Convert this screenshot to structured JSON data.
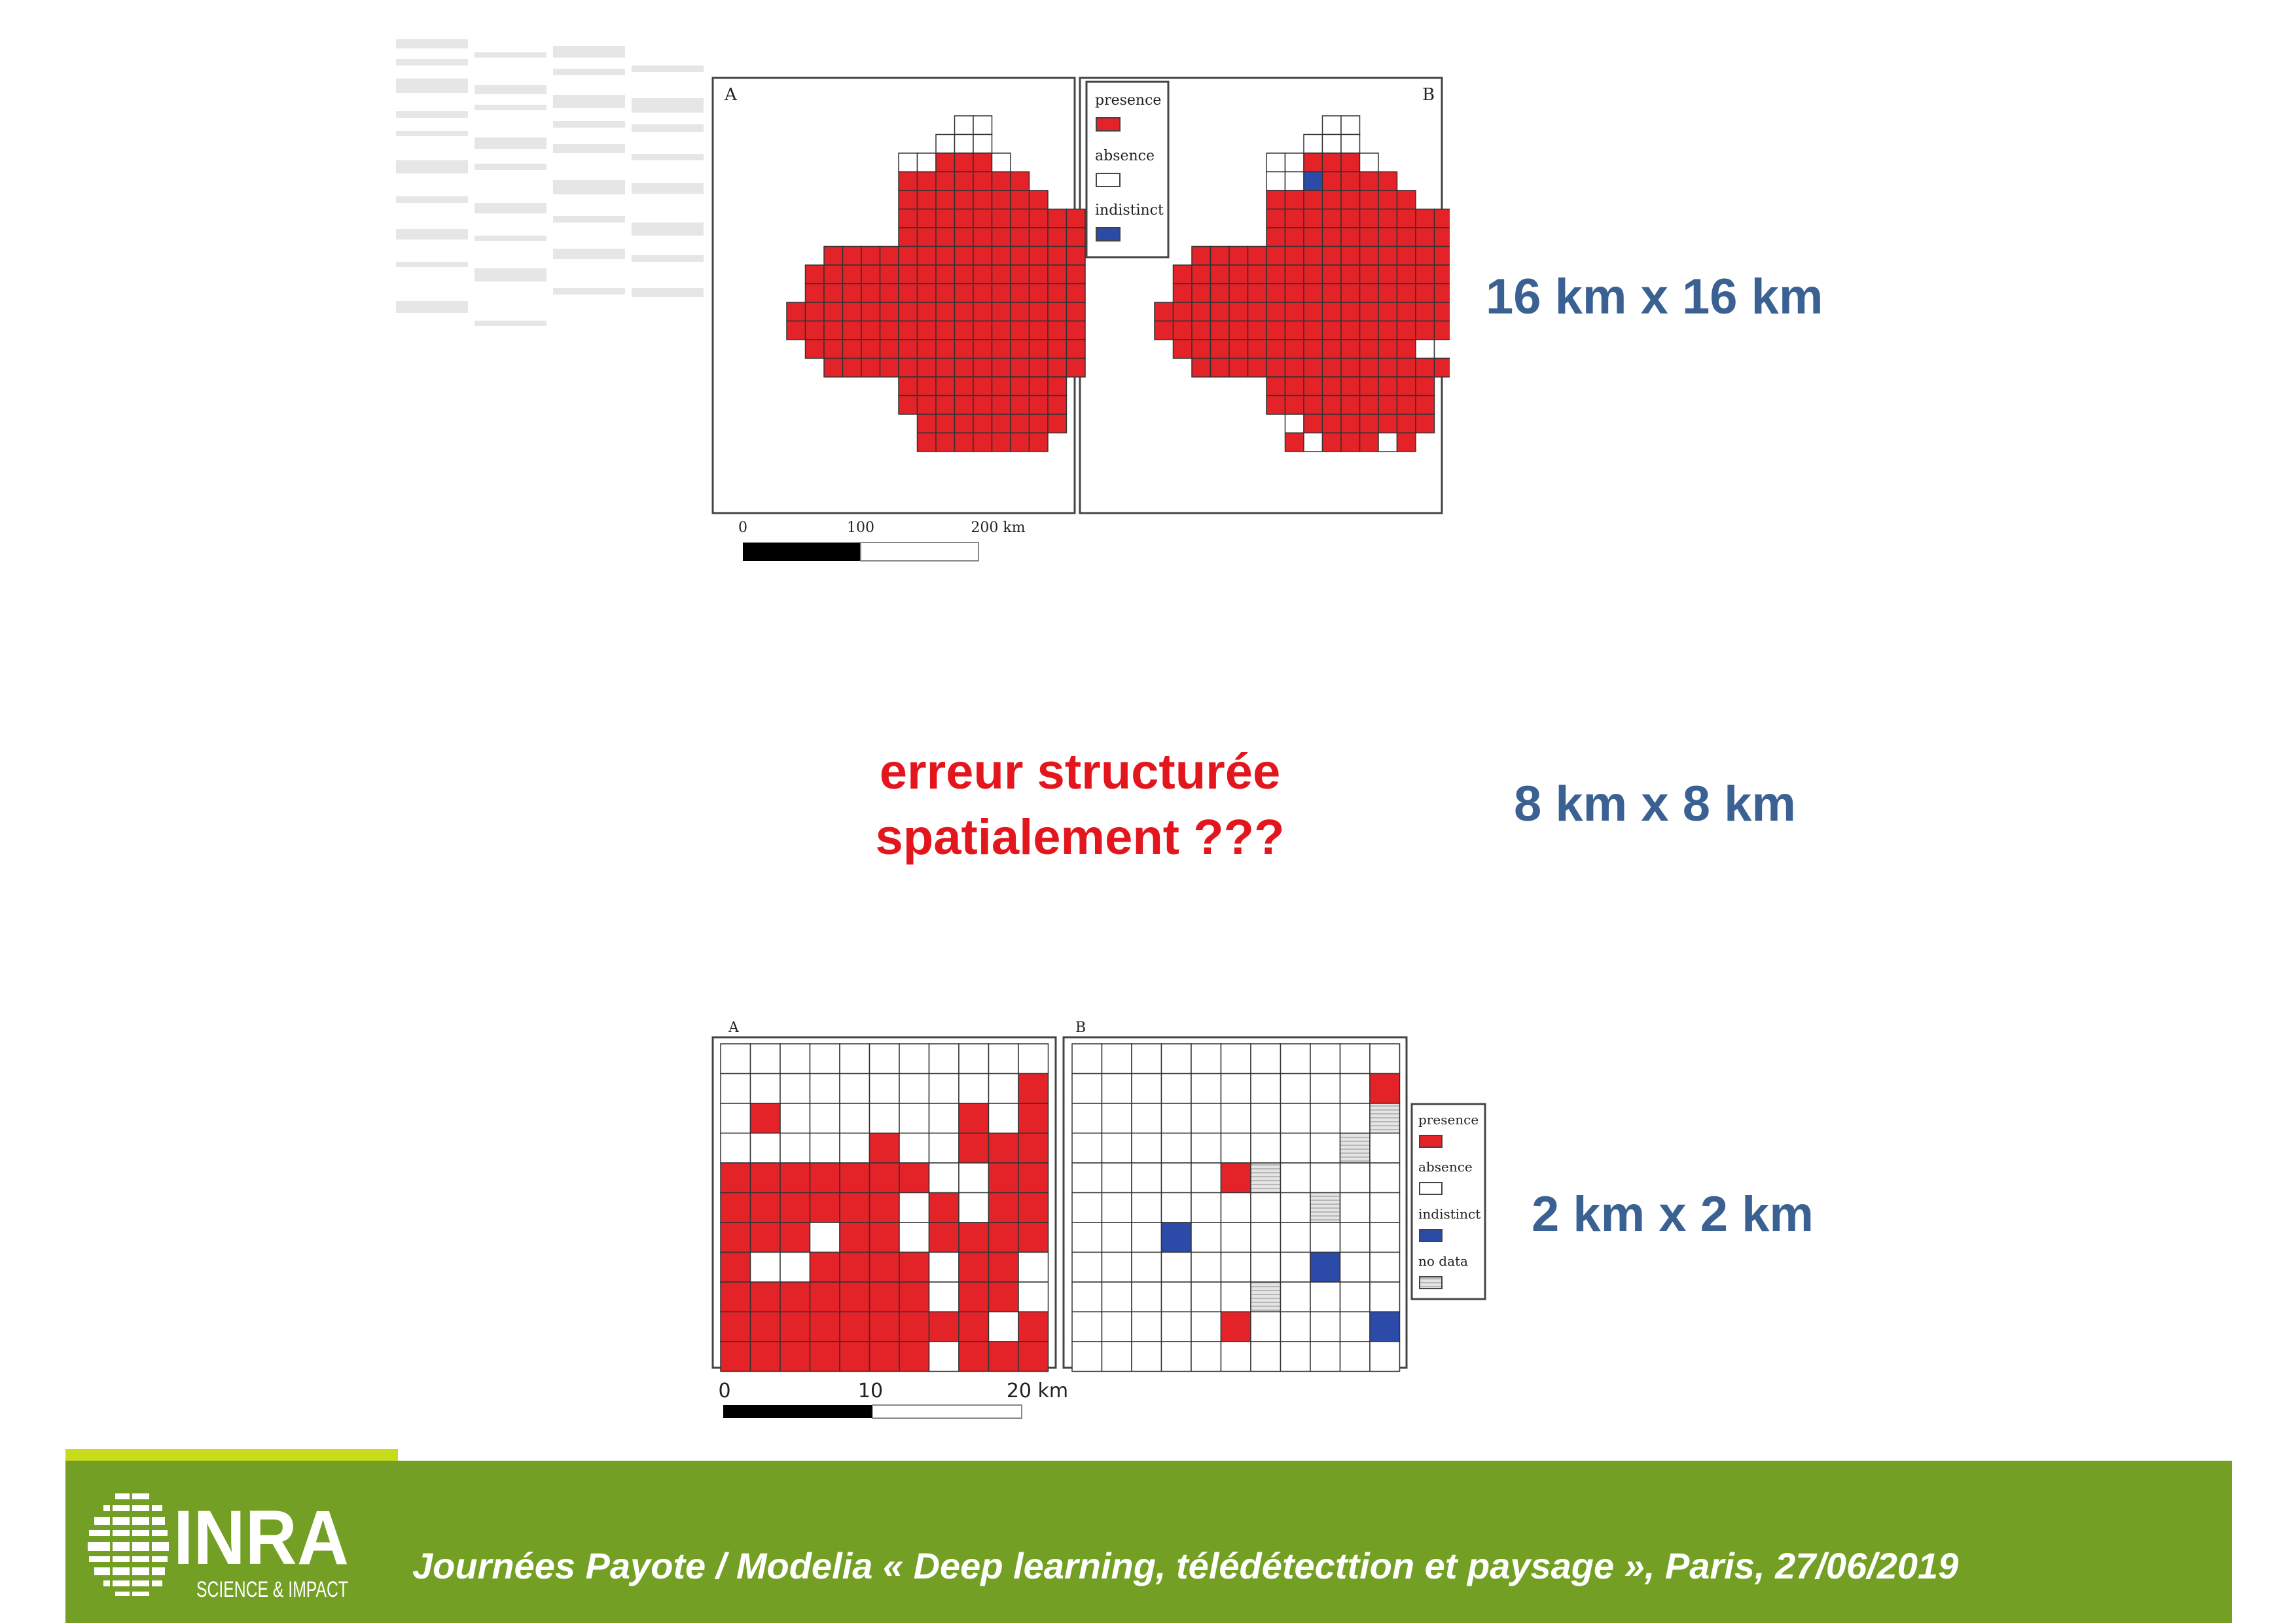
{
  "colors": {
    "presence": "#e32328",
    "absence": "#ffffff",
    "indistinct": "#2c4ba8",
    "no_data": "#d8d8d8",
    "resolution_label": "#3a6191",
    "question": "#e3161d",
    "footer_bg": "#73a024",
    "footer_accent": "#c9dc1b"
  },
  "resolutions": {
    "r16": "16 km x 16 km",
    "r8": "8 km x 8 km",
    "r2": "2 km x 2 km"
  },
  "question": {
    "line1": "erreur structurée",
    "line2": "spatialement ???"
  },
  "map16": {
    "panel_a_label": "A",
    "panel_b_label": "B",
    "legend": {
      "presence": "presence",
      "absence": "absence",
      "indistinct": "indistinct"
    },
    "scale_ticks": [
      "0",
      "100",
      "200 km"
    ],
    "grid_a": [
      "...........WW.....",
      "..........WWW.....",
      "........WWRRRW....",
      "........RRRRRRR...",
      "........RRRRRRRR..",
      "........RRRRRRRRRR",
      "........RRRRRRRRRR",
      "....RRRRRRRRRRRRRR",
      "...RRRRRRRRRRRRRRR",
      "...RRRRRRRRRRRRRRR",
      "..RRRRRRRRRRRRRRRR",
      "..RRRRRRRRRRRRRRRR",
      "...RRRRRRRRRRRRRRR",
      "....RRRRRRRRRRRRRR",
      "........RRRRRRRRR.",
      "........RRRRRRRRR.",
      ".........RRRRRRRR.",
      ".........RRRRRRR.."
    ],
    "grid_b": [
      "...........WW.....",
      "..........WWW.....",
      "........WWRRRW....",
      "........WWBRRRR...",
      "........RRRRRRRR..",
      "........RRRRRRRRRR",
      "........RRRRRRRRRR",
      "....RRRRRRRRRRRRRR",
      "...RRRRRRRRRRRRRRR",
      "...RRRRRRRRRRRRRRR",
      "..RRRRRRRRRRRRRRRR",
      "..RRRRRRRRRRRRRRRR",
      "...RRRRRRRRRRRRRWW",
      "....RRRRRRRRRRRRRR",
      "........RRRRRRRRR.",
      "........RRRRRRRRR.",
      ".........WRRRRRRR.",
      ".........RWRRRWR.."
    ]
  },
  "map2": {
    "panel_a_label": "A",
    "panel_b_label": "B",
    "legend": {
      "presence": "presence",
      "absence": "absence",
      "indistinct": "indistinct",
      "no_data": "no data"
    },
    "scale_ticks": [
      "0",
      "10",
      "20 km"
    ],
    "grid_a": [
      "WWWWWWWWWWW",
      "WWWWWWWWWWR",
      "WRWWWWWWRWR",
      "WWWWWRWWRRR",
      "RRRRRRRWWRR",
      "RRRRRRWRWRR",
      "RRRWRRWRRRR",
      "RWWRRRRWRRW",
      "RRRRRRRWRRW",
      "RRRRRRRRRWR",
      "RRRRRRRWRRR"
    ],
    "grid_b": [
      "WWWWWWWWWWW",
      "WWWWWWWWWWR",
      "WWWWWWWWWWN",
      "WWWWWWWWWNW",
      "WWWWWRNWWWW",
      "WWWWWWWWNWW",
      "WWWBWWWWWWW",
      "WWWWWWWWBWW",
      "WWWWWWNWWWW",
      "WWWWWRWWWWB",
      "WWWWWWWWWWW"
    ]
  },
  "footer": {
    "logo": "INRA",
    "logo_tagline": "SCIENCE & IMPACT",
    "text": "Journées Payote / Modelia « Deep learning, télédétecttion et paysage », Paris, 27/06/2019"
  }
}
